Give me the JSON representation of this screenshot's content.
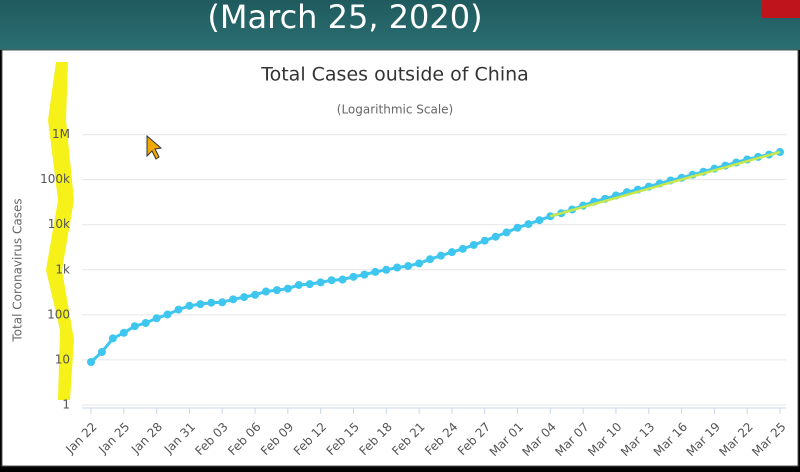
{
  "header": {
    "title": "(March 25, 2020)"
  },
  "chart_data": {
    "type": "line",
    "title": "Total Cases outside of China",
    "subtitle": "(Logarithmic Scale)",
    "y_label": "Total Coronavirus Cases",
    "log_scale": true,
    "grid": true,
    "categories": [
      "Jan 22",
      null,
      null,
      "Jan 25",
      null,
      null,
      "Jan 28",
      null,
      null,
      "Jan 31",
      null,
      null,
      "Feb 03",
      null,
      null,
      "Feb 06",
      null,
      null,
      "Feb 09",
      null,
      null,
      "Feb 12",
      null,
      null,
      "Feb 15",
      null,
      null,
      "Feb 18",
      null,
      null,
      "Feb 21",
      null,
      null,
      "Feb 24",
      null,
      null,
      "Feb 27",
      null,
      null,
      "Mar 01",
      null,
      null,
      "Mar 04",
      null,
      null,
      "Mar 07",
      null,
      null,
      "Mar 10",
      null,
      null,
      "Mar 13",
      null,
      null,
      "Mar 16",
      null,
      null,
      "Mar 19",
      null,
      null,
      "Mar 22",
      null,
      null,
      "Mar 25"
    ],
    "ylim": [
      1,
      2000000
    ],
    "yticks": [
      1,
      10,
      100,
      {
        "value": 1000,
        "label": "1k"
      },
      {
        "value": 10000,
        "label": "10k"
      },
      {
        "value": 100000,
        "label": "100k"
      },
      {
        "value": 1000000,
        "label": "1M"
      }
    ],
    "series": [
      {
        "color": "#3ec6ee",
        "values": [
          9,
          15,
          30,
          40,
          56,
          66,
          84,
          102,
          131,
          159,
          173,
          186,
          190,
          221,
          248,
          278,
          330,
          354,
          382,
          461,
          481,
          526,
          587,
          608,
          697,
          781,
          896,
          999,
          1124,
          1212,
          1385,
          1715,
          2055,
          2459,
          2918,
          3552,
          4412,
          5419,
          6749,
          8565,
          10337,
          12600,
          15400,
          18000,
          21800,
          26500,
          32500,
          37500,
          44500,
          52700,
          60000,
          70000,
          82000,
          96000,
          110000,
          128000,
          150000,
          175000,
          205000,
          240000,
          280000,
          320000,
          360000,
          410000
        ]
      },
      {
        "color": "#c8e84a",
        "values": [
          null,
          null,
          null,
          null,
          null,
          null,
          null,
          null,
          null,
          null,
          null,
          null,
          null,
          null,
          null,
          null,
          null,
          null,
          null,
          null,
          null,
          null,
          null,
          null,
          null,
          null,
          null,
          null,
          null,
          null,
          null,
          null,
          null,
          null,
          null,
          null,
          null,
          null,
          null,
          null,
          null,
          null,
          15400,
          18000,
          21100,
          24600,
          28800,
          33700,
          39300,
          46000,
          53800,
          62900,
          73500,
          86000,
          101000,
          118000,
          137000,
          161000,
          188000,
          220000,
          257000,
          300000,
          351000,
          410000
        ]
      }
    ]
  }
}
